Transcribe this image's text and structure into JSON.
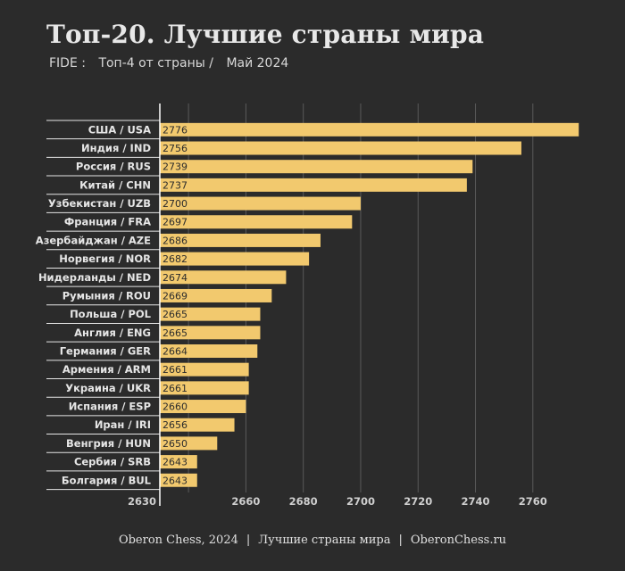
{
  "header": {
    "title": "Топ-20.  Лучшие страны мира",
    "subtitle_parts": [
      "FIDE :",
      "Топ-4  от страны  /",
      "Май 2024"
    ]
  },
  "footer": {
    "left": "Oberon Chess, 2024",
    "middle": "Лучшие страны мира",
    "right": "OberonChess.ru",
    "separator": "|"
  },
  "colors": {
    "background": "#2b2b2b",
    "bar": "#f2c96e",
    "axis": "#ffffff",
    "grid": "#5a5a5a"
  },
  "chart_data": {
    "type": "bar",
    "orientation": "horizontal",
    "categories": [
      "США / USA",
      "Индия / IND",
      "Россия / RUS",
      "Китай / CHN",
      "Узбекистан / UZB",
      "Франция / FRA",
      "Азербайджан / AZE",
      "Норвегия / NOR",
      "Нидерланды / NED",
      "Румыния / ROU",
      "Польша / POL",
      "Англия / ENG",
      "Германия / GER",
      "Армения / ARM",
      "Украина / UKR",
      "Испания / ESP",
      "Иран / IRI",
      "Венгрия / HUN",
      "Сербия / SRB",
      "Болгария / BUL"
    ],
    "values": [
      2776,
      2756,
      2739,
      2737,
      2700,
      2697,
      2686,
      2682,
      2674,
      2669,
      2665,
      2665,
      2664,
      2661,
      2661,
      2660,
      2656,
      2650,
      2643,
      2643
    ],
    "xlim": [
      2630,
      2775
    ],
    "xticks": [
      2630,
      2660,
      2680,
      2700,
      2720,
      2740,
      2760
    ],
    "gridlines": [
      2640,
      2660,
      2680,
      2700,
      2720,
      2740,
      2760
    ],
    "title": "Топ-20.  Лучшие страны мира",
    "xlabel": "",
    "ylabel": "",
    "grid": true,
    "data_labels": "inside-left"
  }
}
